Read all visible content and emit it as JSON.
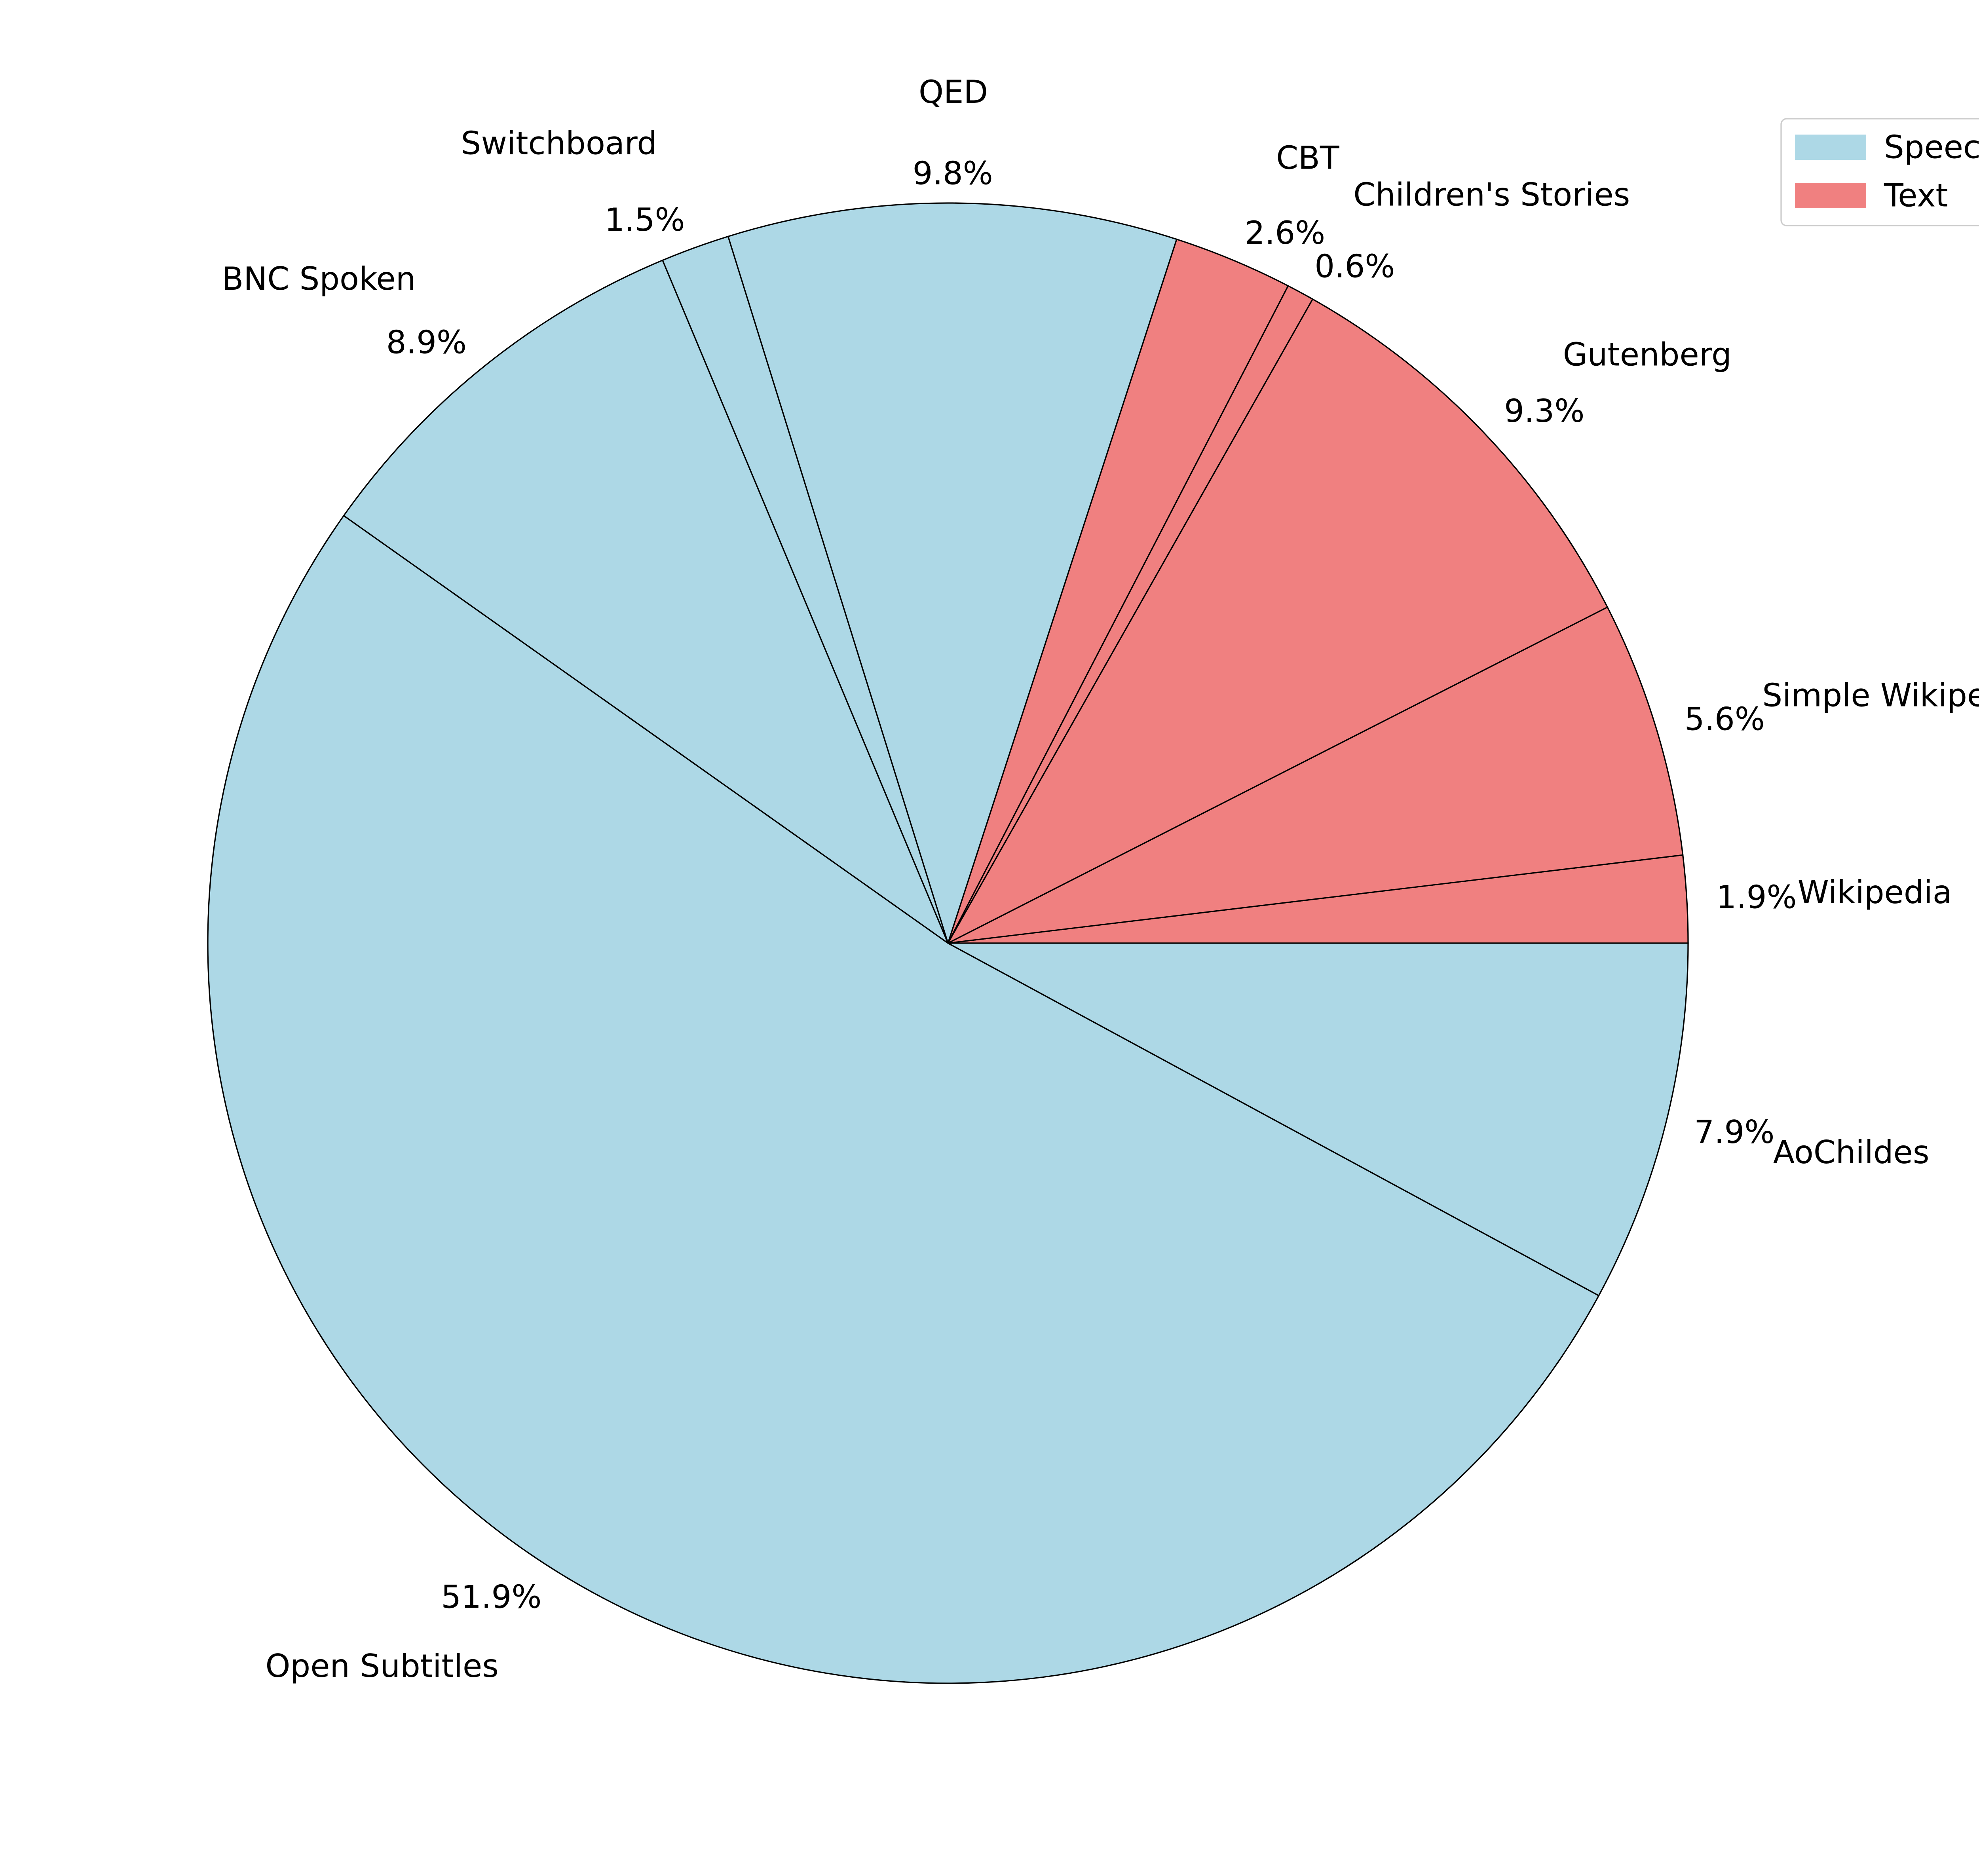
{
  "chart_data": {
    "type": "pie",
    "start_angle_deg": 0,
    "direction": "counterclockwise",
    "legend_position": "top-right",
    "legend": [
      {
        "label": "Speech",
        "color": "#add8e6"
      },
      {
        "label": "Text",
        "color": "#f08080"
      }
    ],
    "slices": [
      {
        "label": "Wikipedia",
        "value": 1.9,
        "pct_label": "1.9%",
        "group": "Text",
        "color": "#f08080"
      },
      {
        "label": "Simple Wikipedia",
        "value": 5.6,
        "pct_label": "5.6%",
        "group": "Text",
        "color": "#f08080"
      },
      {
        "label": "Gutenberg",
        "value": 9.3,
        "pct_label": "9.3%",
        "group": "Text",
        "color": "#f08080"
      },
      {
        "label": "Children's Stories",
        "value": 0.6,
        "pct_label": "0.6%",
        "group": "Text",
        "color": "#f08080"
      },
      {
        "label": "CBT",
        "value": 2.6,
        "pct_label": "2.6%",
        "group": "Text",
        "color": "#f08080"
      },
      {
        "label": "QED",
        "value": 9.8,
        "pct_label": "9.8%",
        "group": "Speech",
        "color": "#add8e6"
      },
      {
        "label": "Switchboard",
        "value": 1.5,
        "pct_label": "1.5%",
        "group": "Speech",
        "color": "#add8e6"
      },
      {
        "label": "BNC Spoken",
        "value": 8.9,
        "pct_label": "8.9%",
        "group": "Speech",
        "color": "#add8e6"
      },
      {
        "label": "Open Subtitles",
        "value": 51.9,
        "pct_label": "51.9%",
        "group": "Speech",
        "color": "#add8e6"
      },
      {
        "label": "AoChildes",
        "value": 7.9,
        "pct_label": "7.9%",
        "group": "Speech",
        "color": "#add8e6"
      }
    ]
  }
}
